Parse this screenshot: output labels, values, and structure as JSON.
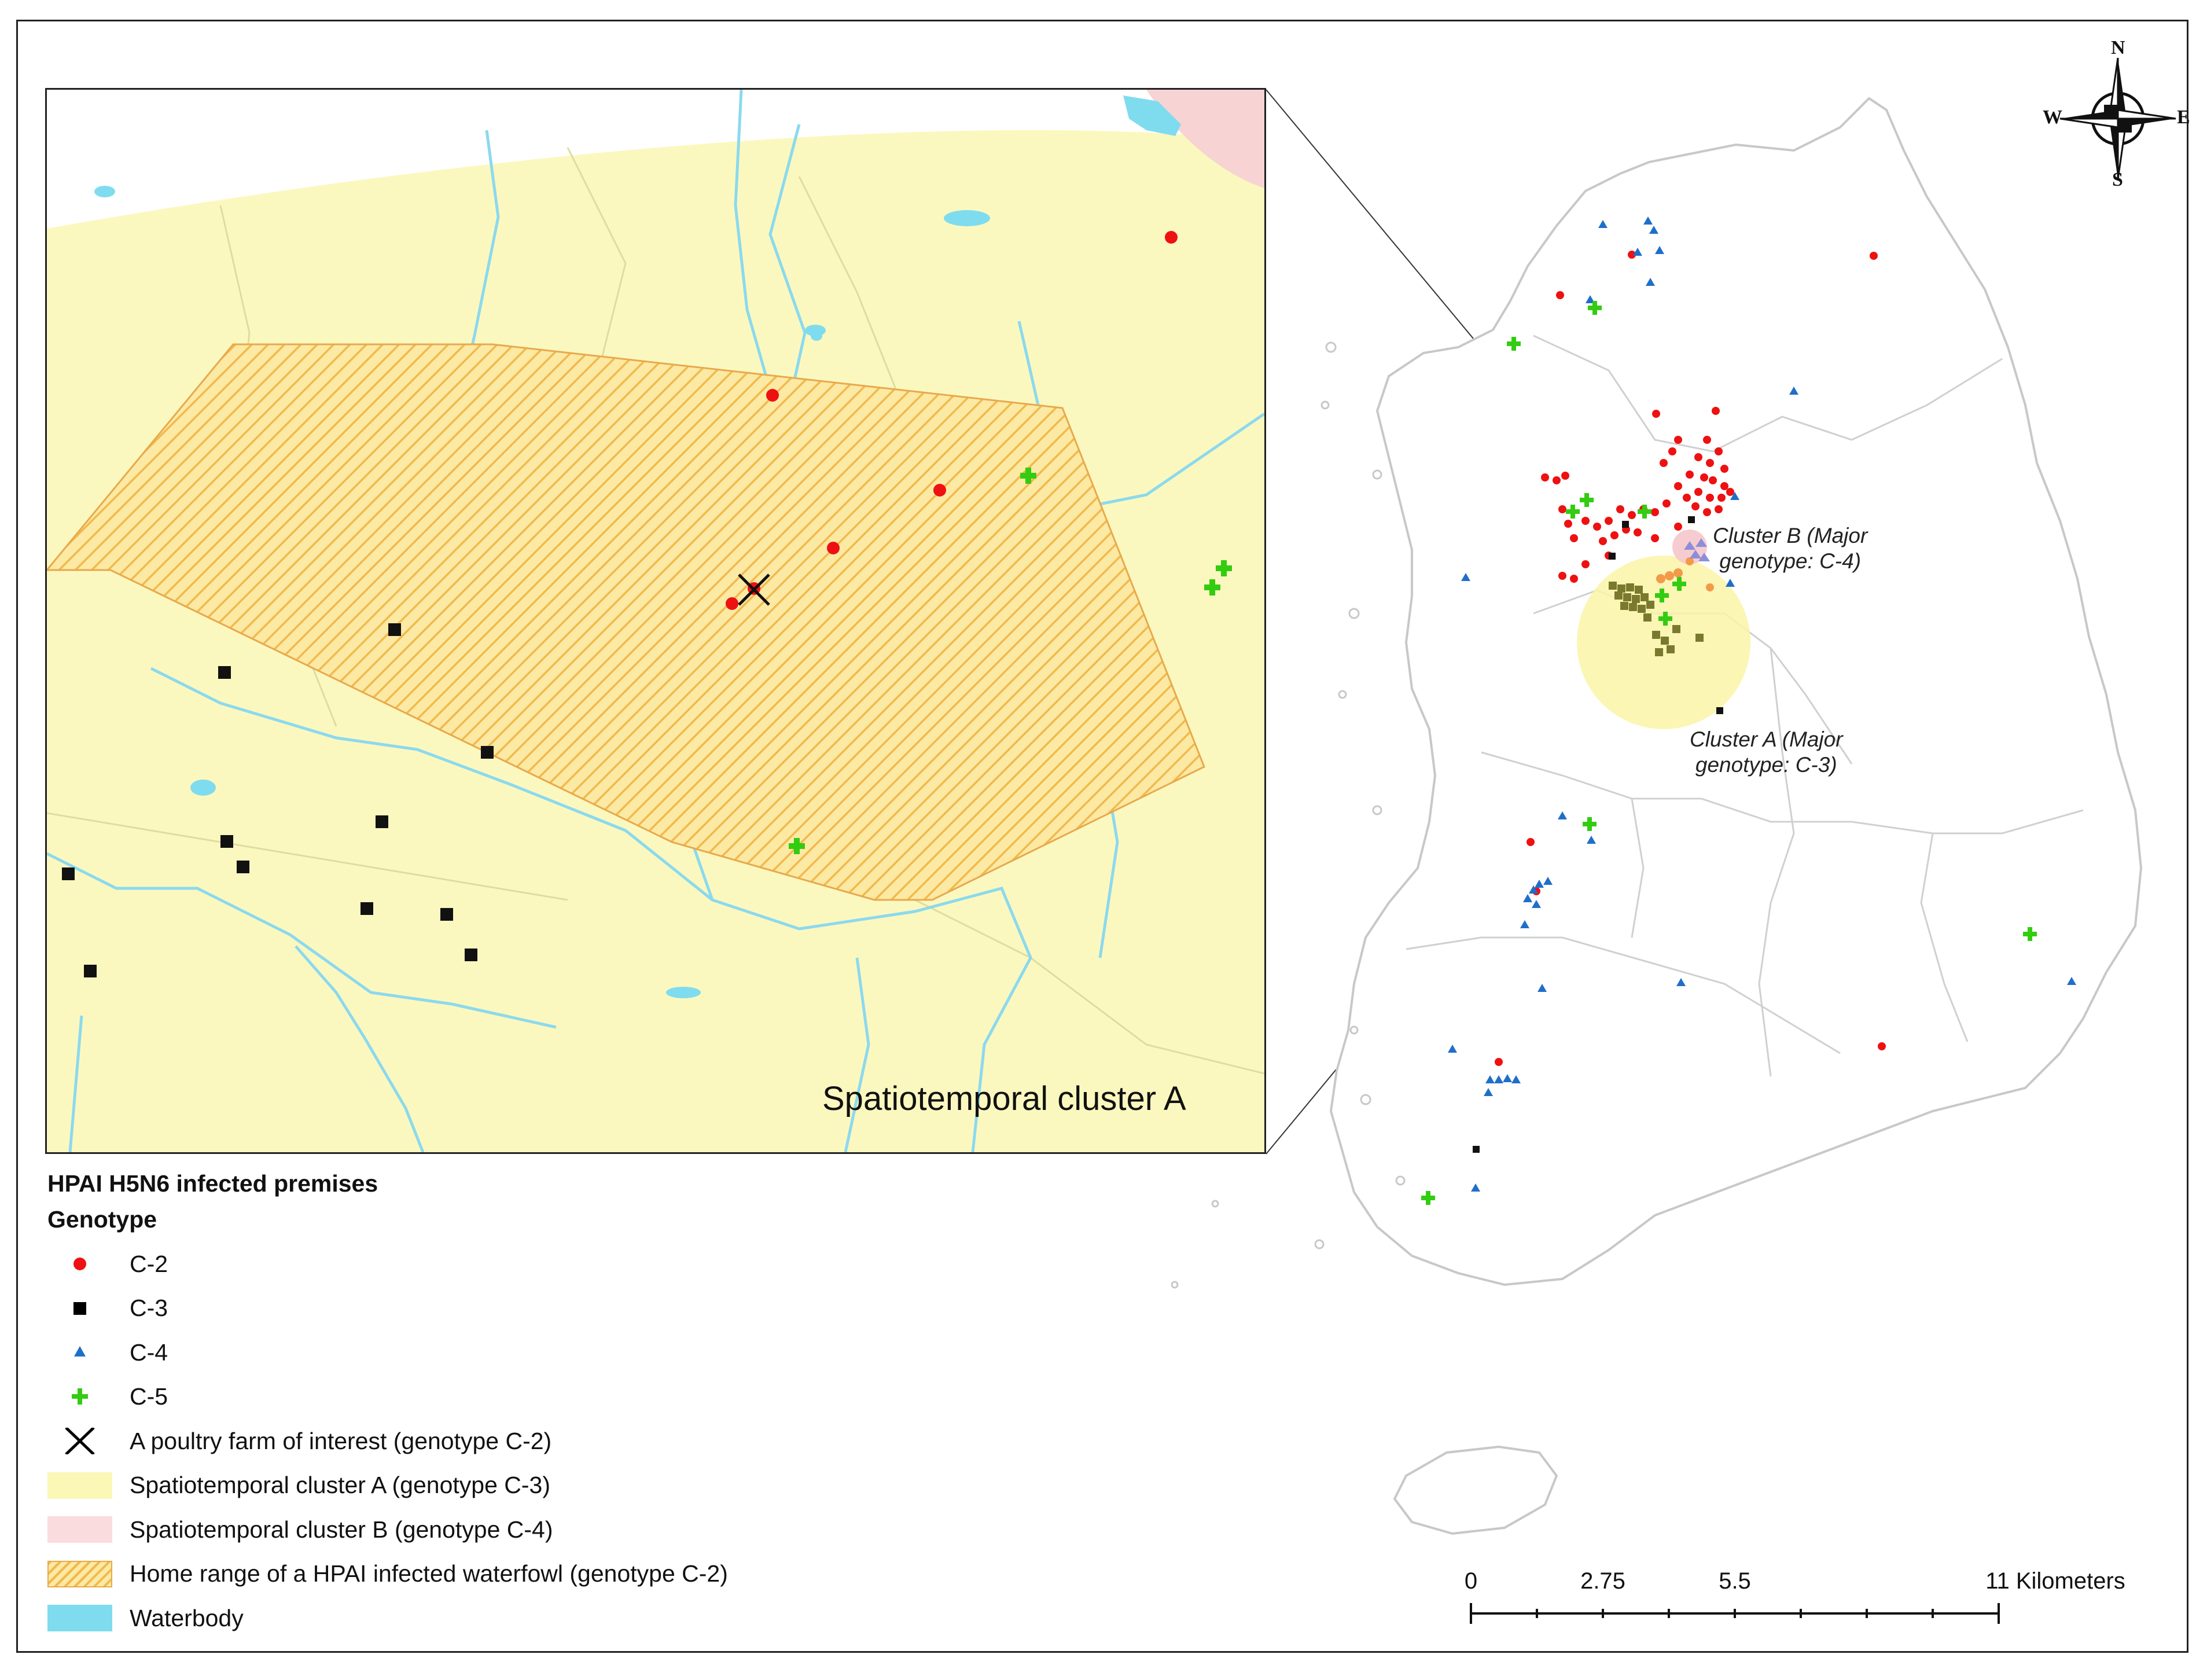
{
  "inset": {
    "title": "Spatiotemporal cluster A"
  },
  "main_map": {
    "cluster_a_label_line1": "Cluster A (Major",
    "cluster_a_label_line2": "genotype: C-3)",
    "cluster_b_label_line1": "Cluster B (Major",
    "cluster_b_label_line2": "genotype: C-4)"
  },
  "compass": {
    "north": "N",
    "south": "S",
    "east": "E",
    "west": "W"
  },
  "legend": {
    "title": "HPAI H5N6 infected premises",
    "subtitle": "Genotype",
    "items": [
      {
        "label": "C-2",
        "icon": "red-circle-icon",
        "color": "#ee1111"
      },
      {
        "label": "C-3",
        "icon": "black-square-icon",
        "color": "#000000"
      },
      {
        "label": "C-4",
        "icon": "blue-triangle-icon",
        "color": "#1f6fc9"
      },
      {
        "label": "C-5",
        "icon": "green-cross-icon",
        "color": "#33cc11"
      },
      {
        "label": "A poultry farm of interest (genotype C-2)",
        "icon": "x-mark-icon",
        "color": "#000000"
      },
      {
        "label": "Spatiotemporal cluster A (genotype C-3)",
        "icon": "yellow-area-icon",
        "color": "#fbf7b6"
      },
      {
        "label": "Spatiotemporal cluster B (genotype C-4)",
        "icon": "pink-area-icon",
        "color": "#fadcde"
      },
      {
        "label": "Home range of a HPAI infected waterfowl (genotype C-2)",
        "icon": "hatched-area-icon",
        "color": "#f5c66a"
      },
      {
        "label": "Waterbody",
        "icon": "waterbody-icon",
        "color": "#7fdcef"
      }
    ]
  },
  "scalebar": {
    "labels": [
      "0",
      "2.75",
      "5.5",
      "11 Kilometers"
    ]
  }
}
